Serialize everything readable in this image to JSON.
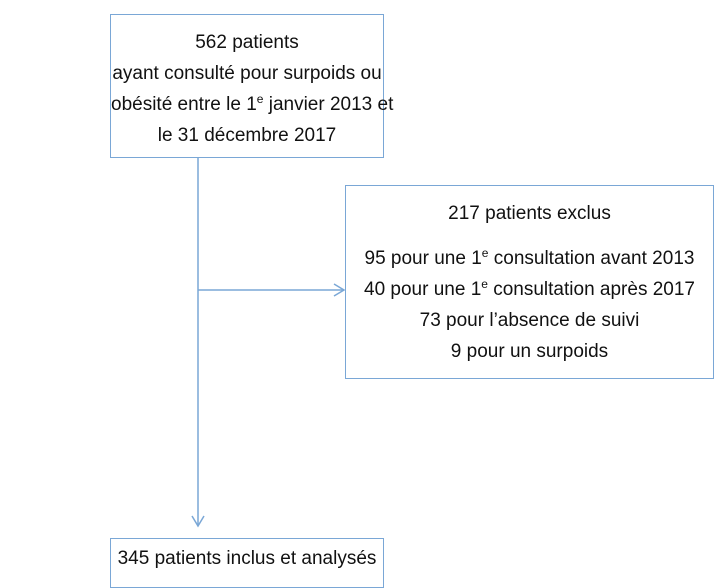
{
  "nodes": [
    {
      "lines": [
        "562 patients",
        "ayant consulté pour surpoids ou",
        {
          "before": "obésité entre le 1",
          "sup": "e",
          "after": " janvier 2013 et"
        },
        "le 31 décembre 2017"
      ]
    },
    {
      "title": "217 patients exclus",
      "lines": [
        {
          "before": "95 pour une 1",
          "sup": "e",
          "after": " consultation avant 2013"
        },
        {
          "before": "40 pour une 1",
          "sup": "e",
          "after": " consultation après 2017"
        },
        "73 pour l’absence de suivi",
        "9 pour un surpoids"
      ]
    },
    {
      "lines": [
        "345 patients inclus et analysés"
      ]
    }
  ]
}
